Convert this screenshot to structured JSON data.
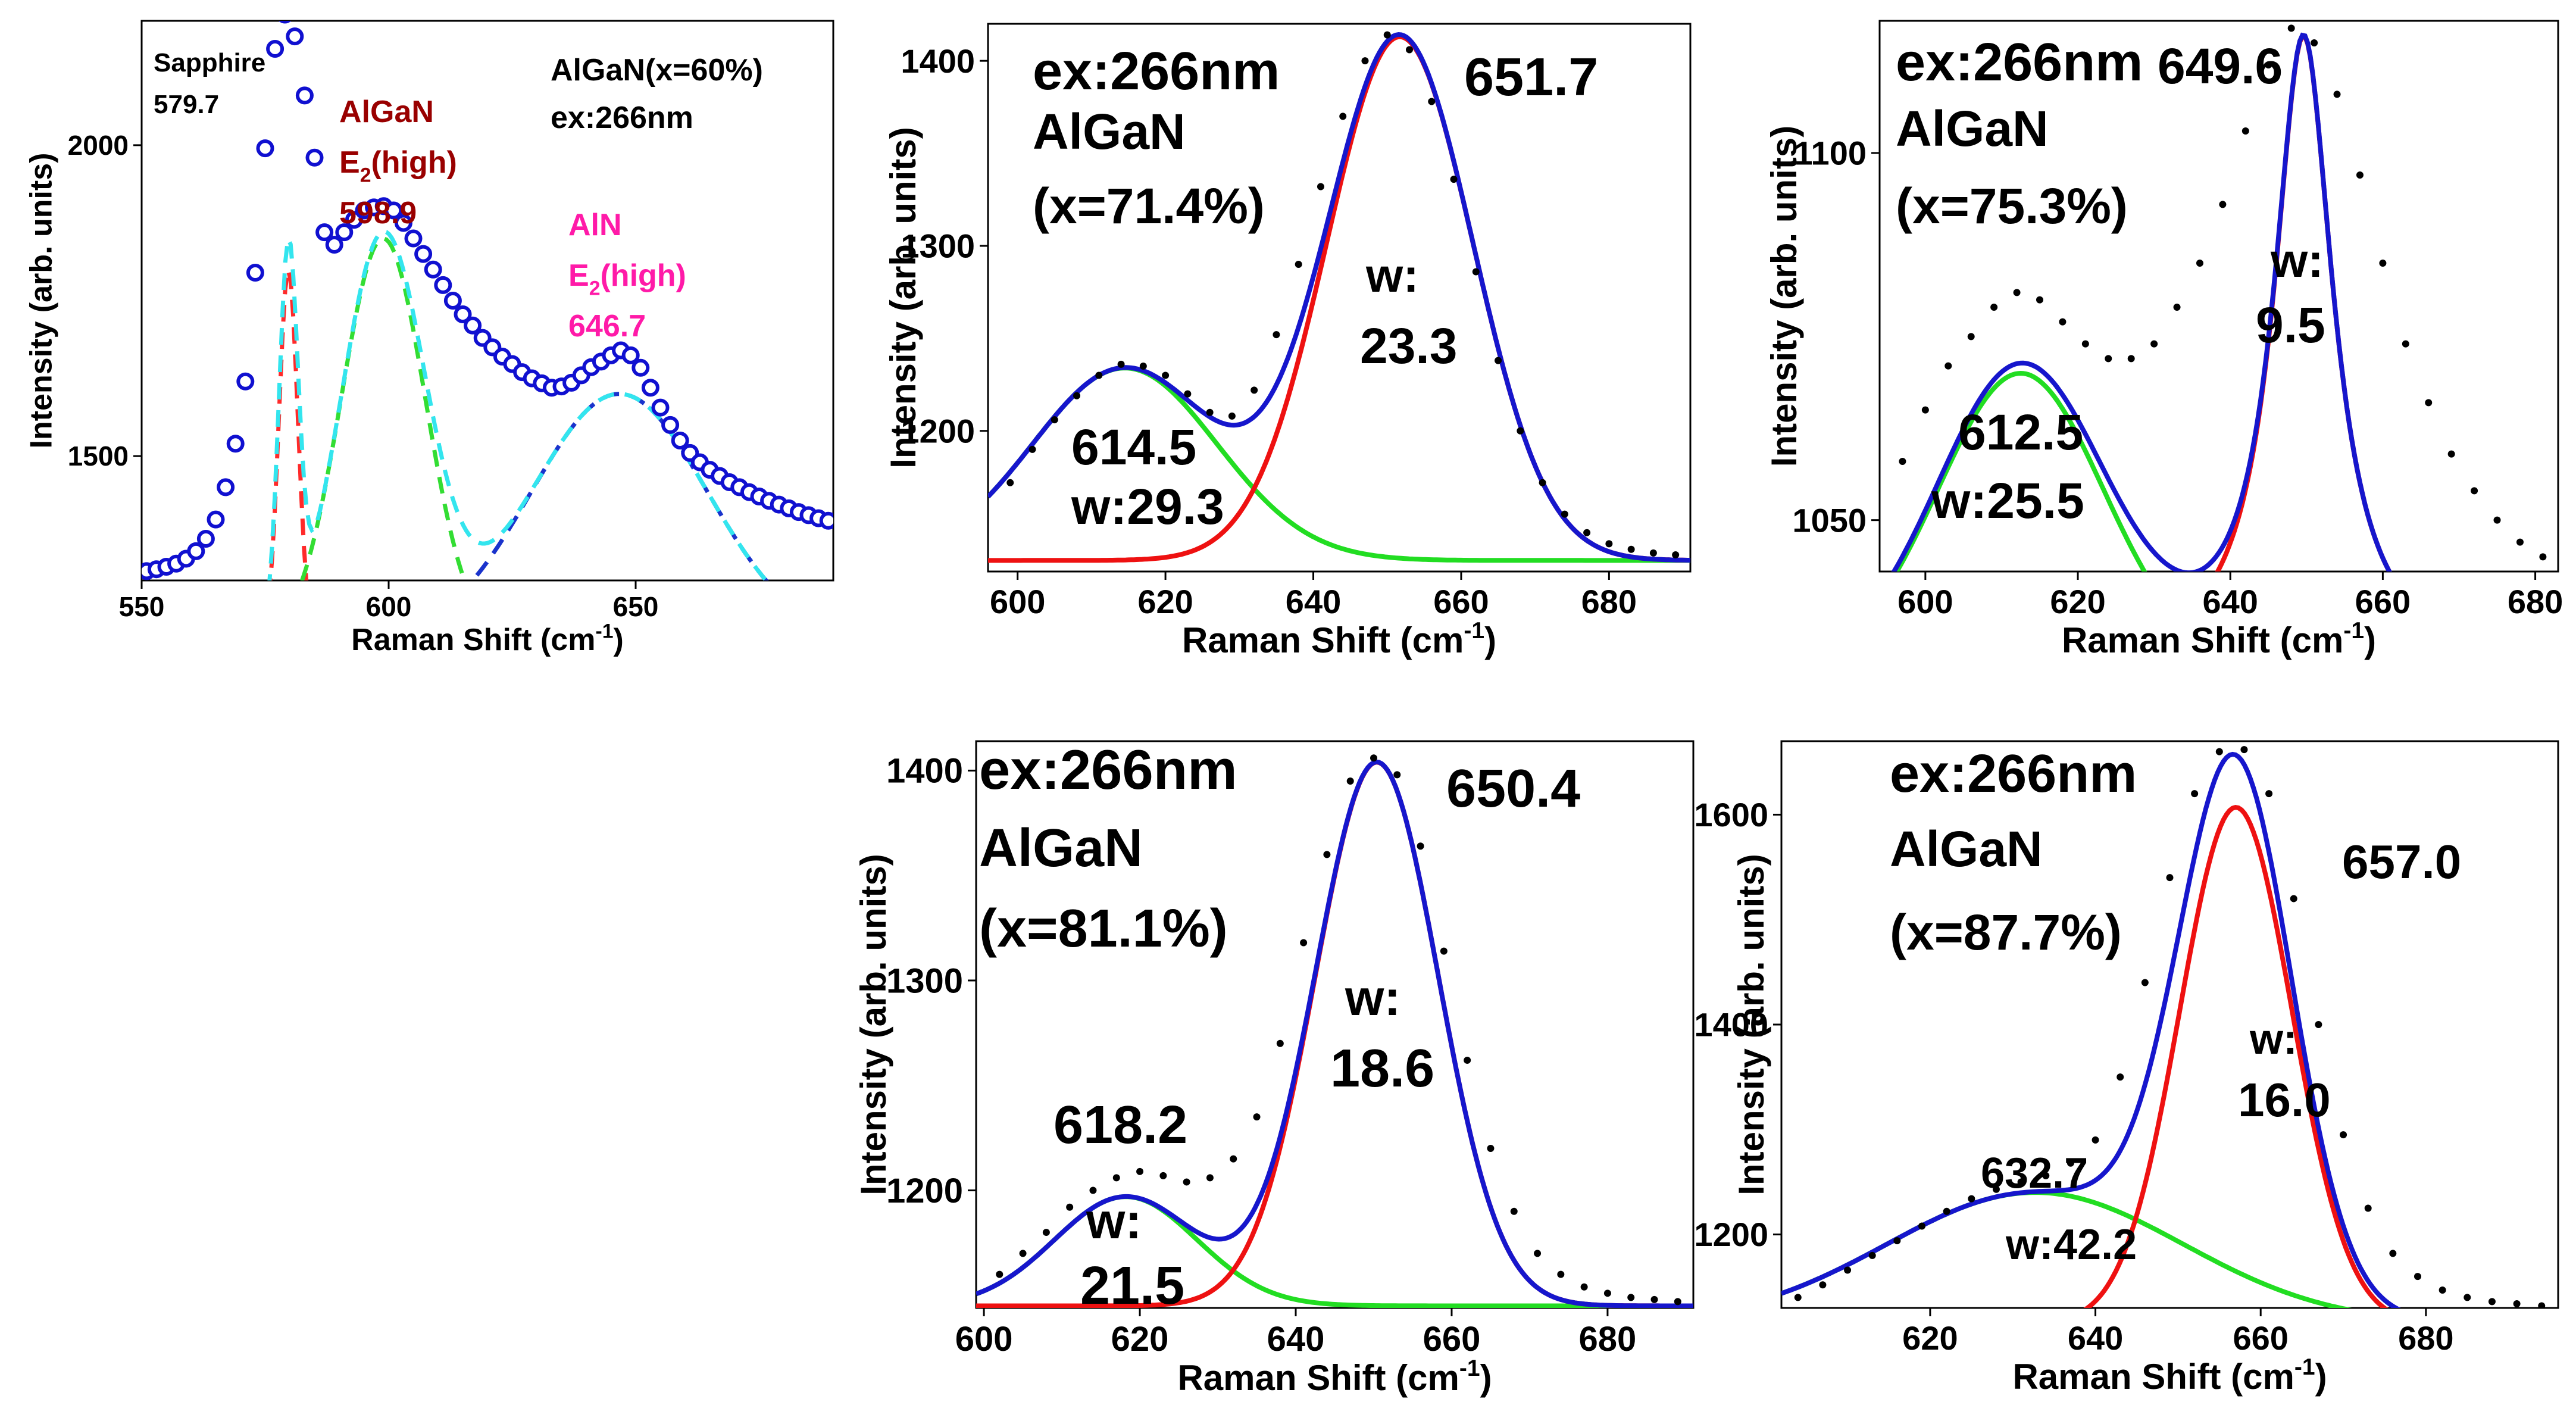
{
  "chart_data": [
    {
      "id": "p0",
      "type": "line",
      "title": "",
      "xlabel": "Raman Shift (cm",
      "xlabel_sup": "-1",
      "xlabel_tail": ")",
      "ylabel": "Intensity (arb. units)",
      "xlim": [
        550,
        690
      ],
      "ylim": [
        1300,
        2200
      ],
      "xticks": [
        550,
        600,
        650
      ],
      "yticks": [
        1500,
        2000
      ],
      "background": 1200,
      "series": [
        {
          "name": "Sapphire",
          "kind": "peak",
          "color": "#ff2a2a",
          "dash": true,
          "center": 579.7,
          "width": 4.5,
          "amp": 600
        },
        {
          "name": "AlGaN E2(high)",
          "kind": "peak",
          "color": "#33dd33",
          "dash": true,
          "center": 598.9,
          "width": 20,
          "amp": 650
        },
        {
          "name": "AlN E2(high)",
          "kind": "peak",
          "color": "#1a33cc",
          "dash": true,
          "center": 646.7,
          "width": 42,
          "amp": 400
        },
        {
          "name": "fit",
          "kind": "sum",
          "color": "#33e5ee",
          "dash": true
        },
        {
          "name": "data",
          "kind": "points",
          "color": "#1010d0",
          "marker": "circle",
          "x": [
            551,
            553,
            555,
            557,
            559,
            561,
            563,
            565,
            567,
            569,
            571,
            573,
            575,
            577,
            579,
            581,
            583,
            585,
            587,
            589,
            591,
            593,
            595,
            597,
            599,
            601,
            603,
            605,
            607,
            609,
            611,
            613,
            615,
            617,
            619,
            621,
            623,
            625,
            627,
            629,
            631,
            633,
            635,
            637,
            639,
            641,
            643,
            645,
            647,
            649,
            651,
            653,
            655,
            657,
            659,
            661,
            663,
            665,
            667,
            669,
            671,
            673,
            675,
            677,
            679,
            681,
            683,
            685,
            687,
            689
          ],
          "y": [
            1315,
            1318,
            1322,
            1327,
            1335,
            1347,
            1367,
            1398,
            1450,
            1520,
            1620,
            1795,
            1995,
            2155,
            2210,
            2175,
            2080,
            1980,
            1860,
            1840,
            1860,
            1880,
            1895,
            1900,
            1902,
            1895,
            1875,
            1850,
            1825,
            1800,
            1775,
            1750,
            1728,
            1710,
            1690,
            1675,
            1660,
            1648,
            1635,
            1625,
            1617,
            1610,
            1612,
            1618,
            1630,
            1643,
            1652,
            1662,
            1670,
            1662,
            1642,
            1610,
            1578,
            1550,
            1525,
            1505,
            1490,
            1478,
            1468,
            1458,
            1450,
            1442,
            1435,
            1428,
            1422,
            1416,
            1410,
            1405,
            1400,
            1396
          ]
        }
      ],
      "annotations": [
        {
          "text": "Sapphire",
          "color": "#000000"
        },
        {
          "text": "579.7",
          "color": "#000000"
        },
        {
          "text": "AlGaN",
          "color": "#990000"
        },
        {
          "text": "E",
          "sub": "2",
          "tail": "(high)",
          "color": "#990000"
        },
        {
          "text": "598.9",
          "color": "#990000"
        },
        {
          "text": "AlN",
          "color": "#ff1aa8"
        },
        {
          "text": "E",
          "sub": "2",
          "tail": "(high)",
          "color": "#ff1aa8"
        },
        {
          "text": "646.7",
          "color": "#ff1aa8"
        },
        {
          "text": "AlGaN(x=60%)",
          "color": "#000000"
        },
        {
          "text": "ex:266nm",
          "color": "#000000"
        }
      ]
    },
    {
      "id": "p1",
      "type": "line",
      "title": "",
      "xlabel": "Raman Shift (cm",
      "xlabel_sup": "-1",
      "xlabel_tail": ")",
      "ylabel": "Intensity (arb. units)",
      "xlim": [
        596,
        691
      ],
      "ylim": [
        1124,
        1420
      ],
      "xticks": [
        600,
        620,
        640,
        660,
        680
      ],
      "yticks": [
        1200,
        1300,
        1400
      ],
      "background": 1130,
      "series": [
        {
          "name": "peak 614.5",
          "kind": "peak",
          "color": "#22dd22",
          "center": 614.5,
          "width": 29.3,
          "amp": 104
        },
        {
          "name": "peak 651.7",
          "kind": "peak",
          "color": "#ee1111",
          "center": 651.7,
          "width": 23.3,
          "amp": 283
        },
        {
          "name": "fit",
          "kind": "sum",
          "color": "#1616cc"
        },
        {
          "name": "data",
          "kind": "dots",
          "color": "#000000",
          "marker": "dot",
          "x": [
            599,
            602,
            605,
            608,
            611,
            614,
            617,
            620,
            623,
            626,
            629,
            632,
            635,
            638,
            641,
            644,
            647,
            650,
            653,
            656,
            659,
            662,
            665,
            668,
            671,
            674,
            677,
            680,
            683,
            686,
            689
          ],
          "y": [
            1172,
            1190,
            1206,
            1219,
            1230,
            1236,
            1235,
            1230,
            1220,
            1210,
            1208,
            1222,
            1252,
            1290,
            1332,
            1370,
            1400,
            1414,
            1406,
            1378,
            1336,
            1286,
            1238,
            1200,
            1172,
            1155,
            1145,
            1139,
            1136,
            1134,
            1133
          ]
        }
      ],
      "annotations": [
        {
          "text": "ex:266nm"
        },
        {
          "text": "AlGaN"
        },
        {
          "text": "(x=71.4%)"
        },
        {
          "text": "651.7"
        },
        {
          "text": "w:"
        },
        {
          "text": "23.3"
        },
        {
          "text": "614.5"
        },
        {
          "text": "w:29.3"
        }
      ]
    },
    {
      "id": "p2",
      "type": "line",
      "title": "",
      "xlabel": "Raman Shift (cm",
      "xlabel_sup": "-1",
      "xlabel_tail": ")",
      "ylabel": "Intensity (arb. units)",
      "xlim": [
        594,
        683
      ],
      "ylim": [
        1043,
        1118
      ],
      "xticks": [
        600,
        620,
        640,
        660,
        680
      ],
      "yticks": [
        1050,
        1100
      ],
      "background": 1030,
      "series": [
        {
          "name": "peak 612.5",
          "kind": "peak",
          "color": "#22dd22",
          "center": 612.5,
          "width": 25.5,
          "amp": 40
        },
        {
          "name": "peak 649.6",
          "kind": "peak",
          "color": "#ee1111",
          "center": 649.6,
          "width": 9.5,
          "amp": 86,
          "profile": "lorentz"
        },
        {
          "name": "fit",
          "kind": "sum",
          "color": "#1616cc"
        },
        {
          "name": "data",
          "kind": "dots",
          "color": "#000000",
          "marker": "dot",
          "x": [
            597,
            600,
            603,
            606,
            609,
            612,
            615,
            618,
            621,
            624,
            627,
            630,
            633,
            636,
            639,
            642,
            645,
            648,
            651,
            654,
            657,
            660,
            663,
            666,
            669,
            672,
            675,
            678,
            681
          ],
          "y": [
            1058,
            1065,
            1071,
            1075,
            1079,
            1081,
            1080,
            1077,
            1074,
            1072,
            1072,
            1074,
            1079,
            1085,
            1093,
            1103,
            1112,
            1117,
            1115,
            1108,
            1097,
            1085,
            1074,
            1066,
            1059,
            1054,
            1050,
            1047,
            1045
          ]
        }
      ],
      "annotations": [
        {
          "text": "ex:266nm"
        },
        {
          "text": "AlGaN"
        },
        {
          "text": "(x=75.3%)"
        },
        {
          "text": "649.6"
        },
        {
          "text": "w:"
        },
        {
          "text": "9.5"
        },
        {
          "text": "612.5"
        },
        {
          "text": "w:25.5"
        }
      ]
    },
    {
      "id": "p3",
      "type": "line",
      "title": "",
      "xlabel": "Raman Shift (cm",
      "xlabel_sup": "-1",
      "xlabel_tail": ")",
      "ylabel": "Intensity (arb. units)",
      "xlim": [
        599,
        691
      ],
      "ylim": [
        1144,
        1414
      ],
      "xticks": [
        600,
        620,
        640,
        660,
        680
      ],
      "yticks": [
        1200,
        1300,
        1400
      ],
      "background": 1145,
      "series": [
        {
          "name": "peak 618.2",
          "kind": "peak",
          "color": "#22dd22",
          "center": 618.2,
          "width": 21.5,
          "amp": 52
        },
        {
          "name": "peak 650.4",
          "kind": "peak",
          "color": "#ee1111",
          "center": 650.4,
          "width": 18.6,
          "amp": 259
        },
        {
          "name": "fit",
          "kind": "sum",
          "color": "#1616cc"
        },
        {
          "name": "data",
          "kind": "dots",
          "color": "#000000",
          "marker": "dot",
          "x": [
            602,
            605,
            608,
            611,
            614,
            617,
            620,
            623,
            626,
            629,
            632,
            635,
            638,
            641,
            644,
            647,
            650,
            653,
            656,
            659,
            662,
            665,
            668,
            671,
            674,
            677,
            680,
            683,
            686,
            689
          ],
          "y": [
            1160,
            1170,
            1180,
            1192,
            1200,
            1206,
            1209,
            1207,
            1204,
            1206,
            1215,
            1235,
            1270,
            1318,
            1360,
            1395,
            1406,
            1398,
            1364,
            1314,
            1262,
            1220,
            1190,
            1170,
            1160,
            1154,
            1151,
            1149,
            1148,
            1147
          ]
        }
      ],
      "annotations": [
        {
          "text": "ex:266nm"
        },
        {
          "text": "AlGaN"
        },
        {
          "text": "(x=81.1%)"
        },
        {
          "text": "650.4"
        },
        {
          "text": "w:"
        },
        {
          "text": "18.6"
        },
        {
          "text": "618.2"
        },
        {
          "text": "w:"
        },
        {
          "text": "21.5"
        }
      ]
    },
    {
      "id": "p4",
      "type": "line",
      "title": "",
      "xlabel": "Raman Shift  (cm",
      "xlabel_sup": "-1",
      "xlabel_tail": ")",
      "ylabel": "Intensity (arb. units)",
      "xlim": [
        602,
        696
      ],
      "ylim": [
        1130,
        1670
      ],
      "xticks": [
        620,
        640,
        660,
        680
      ],
      "yticks": [
        1200,
        1400,
        1600
      ],
      "background": 1115,
      "series": [
        {
          "name": "peak 632.7",
          "kind": "peak",
          "color": "#22dd22",
          "center": 632.7,
          "width": 42.2,
          "amp": 125
        },
        {
          "name": "peak 657.0",
          "kind": "peak",
          "color": "#ee1111",
          "center": 657.0,
          "width": 16.0,
          "amp": 492
        },
        {
          "name": "fit",
          "kind": "sum",
          "color": "#1616cc"
        },
        {
          "name": "data",
          "kind": "dots",
          "color": "#000000",
          "marker": "dot",
          "x": [
            604,
            607,
            610,
            613,
            616,
            619,
            622,
            625,
            628,
            631,
            634,
            637,
            640,
            643,
            646,
            649,
            652,
            655,
            658,
            661,
            664,
            667,
            670,
            673,
            676,
            679,
            682,
            685,
            688,
            691,
            694
          ],
          "y": [
            1140,
            1152,
            1166,
            1180,
            1194,
            1208,
            1222,
            1234,
            1243,
            1250,
            1256,
            1268,
            1290,
            1350,
            1440,
            1540,
            1620,
            1660,
            1662,
            1620,
            1520,
            1400,
            1295,
            1225,
            1182,
            1160,
            1147,
            1140,
            1136,
            1134,
            1132
          ]
        }
      ],
      "annotations": [
        {
          "text": "ex:266nm"
        },
        {
          "text": "AlGaN"
        },
        {
          "text": "(x=87.7%)"
        },
        {
          "text": "657.0"
        },
        {
          "text": "w:"
        },
        {
          "text": "16.0"
        },
        {
          "text": "632.7"
        },
        {
          "text": "w:42.2"
        }
      ]
    }
  ]
}
